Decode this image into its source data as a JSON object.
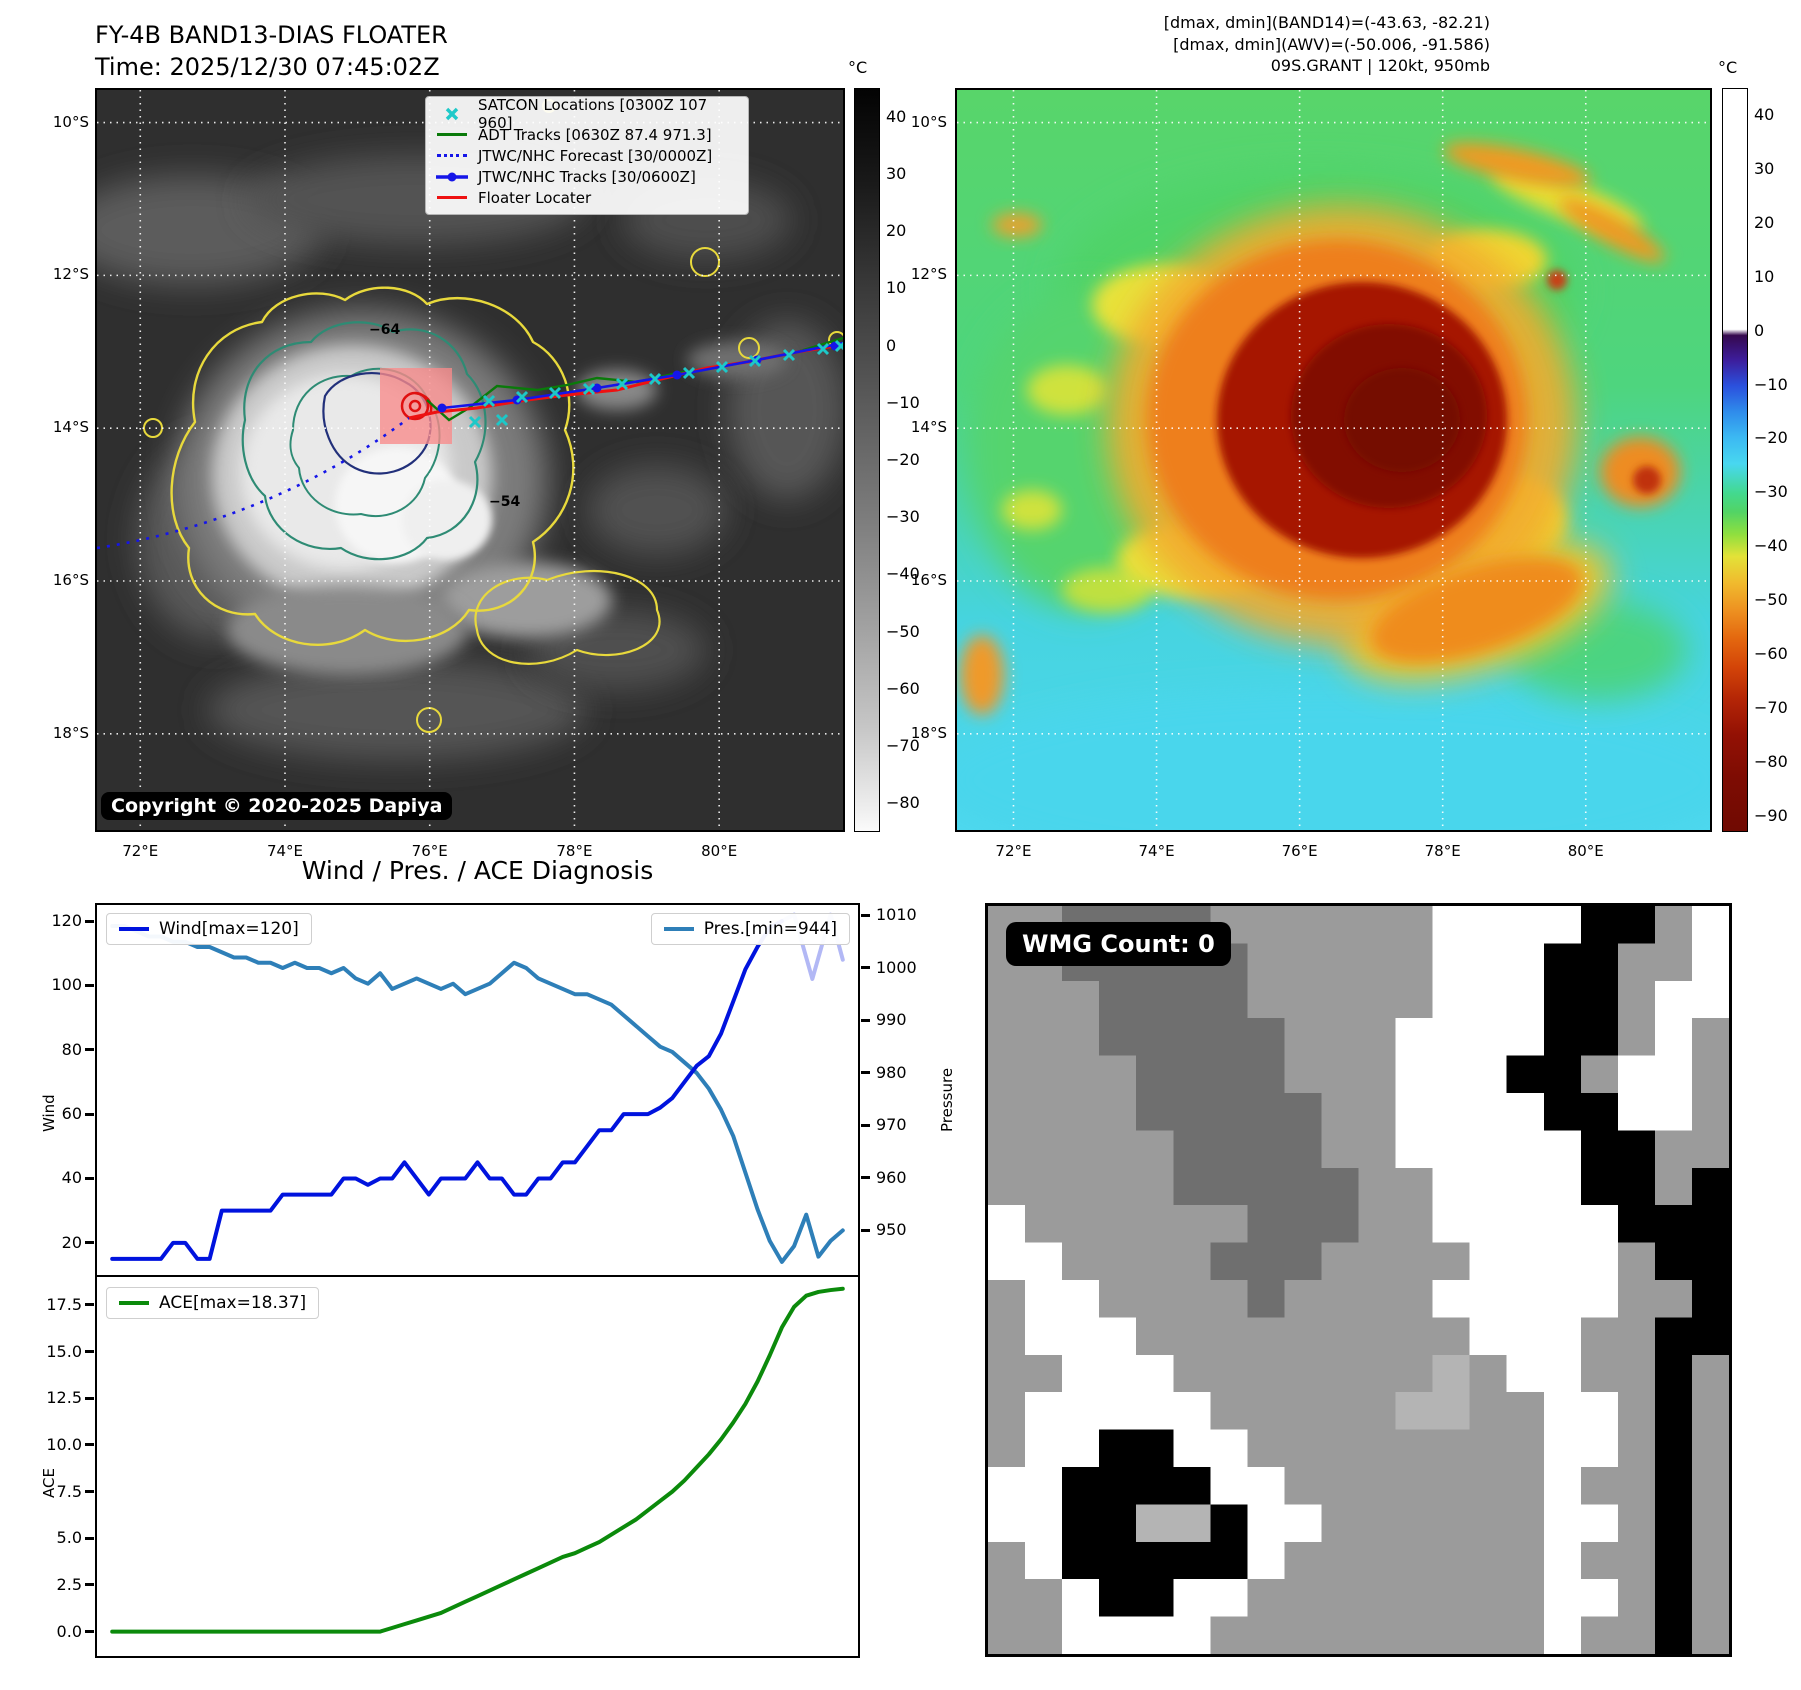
{
  "header_left": {
    "title": "FY-4B BAND13-DIAS FLOATER",
    "time": "Time: 2025/12/30 07:45:02Z"
  },
  "header_right": {
    "line1": "[dmax, dmin](BAND14)=(-43.63, -82.21)",
    "line2": "[dmax, dmin](AWV)=(-50.006, -91.586)",
    "line3": "09S.GRANT | 120kt, 950mb"
  },
  "left_map": {
    "copyright": "Copyright © 2020-2025 Dapiya",
    "legend": [
      {
        "type": "x-marker",
        "color": "#1ec9c9",
        "label": "SATCON Locations [0300Z 107 960]"
      },
      {
        "type": "solid",
        "color": "#0a7a0a",
        "label": "ADT Tracks [0630Z 87.4 971.3]"
      },
      {
        "type": "dotted",
        "color": "#1515e8",
        "label": "JTWC/NHC Forecast [30/0000Z]"
      },
      {
        "type": "dot-line",
        "color": "#1515e8",
        "label": "JTWC/NHC Tracks [30/0600Z]"
      },
      {
        "type": "solid",
        "color": "#ee1111",
        "label": "Floater Locater"
      }
    ],
    "contour_labels": [
      {
        "text": "−64",
        "color": "#2e6b60"
      },
      {
        "text": "−54",
        "color": "#4aa64a"
      }
    ],
    "lat_ticks": [
      "10°S",
      "12°S",
      "14°S",
      "16°S",
      "18°S"
    ],
    "lon_ticks": [
      "72°E",
      "74°E",
      "76°E",
      "78°E",
      "80°E"
    ],
    "colorbar": {
      "unit": "°C",
      "vmax": 45,
      "vmin": -85,
      "ticks": [
        {
          "v": 40,
          "t": "40"
        },
        {
          "v": 30,
          "t": "30"
        },
        {
          "v": 20,
          "t": "20"
        },
        {
          "v": 10,
          "t": "10"
        },
        {
          "v": 0,
          "t": "0"
        },
        {
          "v": -10,
          "t": "−10"
        },
        {
          "v": -20,
          "t": "−20"
        },
        {
          "v": -30,
          "t": "−30"
        },
        {
          "v": -40,
          "t": "−40"
        },
        {
          "v": -50,
          "t": "−50"
        },
        {
          "v": -60,
          "t": "−60"
        },
        {
          "v": -70,
          "t": "−70"
        },
        {
          "v": -80,
          "t": "−80"
        }
      ]
    }
  },
  "right_map": {
    "lat_ticks": [
      "10°S",
      "12°S",
      "14°S",
      "16°S",
      "18°S"
    ],
    "lon_ticks": [
      "72°E",
      "74°E",
      "76°E",
      "78°E",
      "80°E"
    ],
    "colorbar": {
      "unit": "°C",
      "vmax": 45,
      "vmin": -93,
      "ticks": [
        {
          "v": 40,
          "t": "40"
        },
        {
          "v": 30,
          "t": "30"
        },
        {
          "v": 20,
          "t": "20"
        },
        {
          "v": 10,
          "t": "10"
        },
        {
          "v": 0,
          "t": "0"
        },
        {
          "v": -10,
          "t": "−10"
        },
        {
          "v": -20,
          "t": "−20"
        },
        {
          "v": -30,
          "t": "−30"
        },
        {
          "v": -40,
          "t": "−40"
        },
        {
          "v": -50,
          "t": "−50"
        },
        {
          "v": -60,
          "t": "−60"
        },
        {
          "v": -70,
          "t": "−70"
        },
        {
          "v": -80,
          "t": "−80"
        },
        {
          "v": -90,
          "t": "−90"
        }
      ]
    }
  },
  "charts_title": "Wind / Pres. / ACE Diagnosis",
  "chart_data": [
    {
      "type": "line",
      "title": "Wind / Pres. / ACE Diagnosis",
      "left_axis": {
        "label": "Wind",
        "ylim": [
          10,
          125
        ],
        "ticks": [
          {
            "v": 20,
            "t": "20"
          },
          {
            "v": 40,
            "t": "40"
          },
          {
            "v": 60,
            "t": "60"
          },
          {
            "v": 80,
            "t": "80"
          },
          {
            "v": 100,
            "t": "100"
          },
          {
            "v": 120,
            "t": "120"
          }
        ]
      },
      "right_axis": {
        "label": "Pressure",
        "ylim": [
          941.5,
          1012
        ],
        "ticks": [
          {
            "v": 950,
            "t": "950"
          },
          {
            "v": 960,
            "t": "960"
          },
          {
            "v": 970,
            "t": "970"
          },
          {
            "v": 980,
            "t": "980"
          },
          {
            "v": 990,
            "t": "990"
          },
          {
            "v": 1000,
            "t": "1000"
          },
          {
            "v": 1010,
            "t": "1010"
          }
        ]
      },
      "series": [
        {
          "name": "Wind[max=120]",
          "color": "#0013de",
          "axis": "left",
          "values": [
            15,
            15,
            15,
            15,
            15,
            20,
            20,
            15,
            15,
            30,
            30,
            30,
            30,
            30,
            35,
            35,
            35,
            35,
            35,
            40,
            40,
            38,
            40,
            40,
            45,
            40,
            35,
            40,
            40,
            40,
            45,
            40,
            40,
            35,
            35,
            40,
            40,
            45,
            45,
            50,
            55,
            55,
            60,
            60,
            60,
            62,
            65,
            70,
            75,
            78,
            85,
            95,
            105,
            112,
            118,
            120
          ]
        },
        {
          "name": "Pres.[min=944]",
          "color": "#2e7fb8",
          "axis": "right",
          "values": [
            1008,
            1008,
            1007,
            1006,
            1006,
            1005,
            1005,
            1004,
            1004,
            1003,
            1002,
            1002,
            1001,
            1001,
            1000,
            1001,
            1000,
            1000,
            999,
            1000,
            998,
            997,
            999,
            996,
            997,
            998,
            997,
            996,
            997,
            995,
            996,
            997,
            999,
            1001,
            1000,
            998,
            997,
            996,
            995,
            995,
            994,
            993,
            991,
            989,
            987,
            985,
            984,
            982,
            980,
            977,
            973,
            968,
            961,
            954,
            948,
            944,
            947,
            953,
            945,
            948,
            950
          ]
        }
      ],
      "wind_forecast_tail": [
        [
          55,
          120
        ],
        [
          56,
          122
        ],
        [
          57.5,
          102
        ],
        [
          59,
          122
        ],
        [
          60,
          108
        ]
      ]
    },
    {
      "type": "line",
      "left_axis": {
        "label": "ACE",
        "ylim": [
          -1.2,
          19
        ],
        "ticks": [
          {
            "v": 0,
            "t": "0.0"
          },
          {
            "v": 2.5,
            "t": "2.5"
          },
          {
            "v": 5,
            "t": "5.0"
          },
          {
            "v": 7.5,
            "t": "7.5"
          },
          {
            "v": 10,
            "t": "10.0"
          },
          {
            "v": 12.5,
            "t": "12.5"
          },
          {
            "v": 15,
            "t": "15.0"
          },
          {
            "v": 17.5,
            "t": "17.5"
          }
        ]
      },
      "series": [
        {
          "name": "ACE[max=18.37]",
          "color": "#0b8a0b",
          "axis": "left",
          "values": [
            0,
            0,
            0,
            0,
            0,
            0,
            0,
            0,
            0,
            0,
            0,
            0,
            0,
            0,
            0,
            0,
            0,
            0,
            0,
            0,
            0,
            0,
            0,
            0.2,
            0.4,
            0.6,
            0.8,
            1.0,
            1.3,
            1.6,
            1.9,
            2.2,
            2.5,
            2.8,
            3.1,
            3.4,
            3.7,
            4.0,
            4.2,
            4.5,
            4.8,
            5.2,
            5.6,
            6.0,
            6.5,
            7.0,
            7.5,
            8.1,
            8.8,
            9.5,
            10.3,
            11.2,
            12.2,
            13.4,
            14.8,
            16.3,
            17.4,
            18.0,
            18.2,
            18.3,
            18.37
          ]
        }
      ]
    }
  ],
  "wmg": {
    "label": "WMG Count: 0",
    "palette": {
      "g": "#9b9b9b",
      "d": "#6f6f6f",
      "w": "#ffffff",
      "k": "#000000",
      "l": "#b4b4b4"
    },
    "grid": [
      "ggddddggggggwwwwkkgw",
      "ggdddddgggggwwwkkggw",
      "gggddddgggggwwwkkgww",
      "gggdddddgggwwwwkkgwg",
      "ggggddddgggwwwkkgwwg",
      "ggggdddddggwwwwkkwwg",
      "gggggddddggwwwwwkkgg",
      "gggggdddddggwwwwkkgk",
      "wggggggdddggwwwwwkkk",
      "wwggggdddggggwwwwgkk",
      "gwwggggdggggwwwwwggk",
      "gwwwgggggggggwwwggkk",
      "ggwwwggggggglgwwggkg",
      "gwwwwwgggggllggwwgkg",
      "gwwkkwwggggggggwwgkg",
      "wwkkkkwwgggggggwggkg",
      "wwkkllkwwggggggwwgkg",
      "gwkkkkkwgggggggwggkg",
      "ggwkkwwggggggggwwgkg",
      "ggwwwwgggggggggwggkg"
    ]
  }
}
